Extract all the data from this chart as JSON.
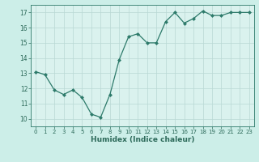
{
  "x": [
    0,
    1,
    2,
    3,
    4,
    5,
    6,
    7,
    8,
    9,
    10,
    11,
    12,
    13,
    14,
    15,
    16,
    17,
    18,
    19,
    20,
    21,
    22,
    23
  ],
  "y": [
    13.1,
    12.9,
    11.9,
    11.6,
    11.9,
    11.4,
    10.3,
    10.1,
    11.6,
    13.9,
    15.4,
    15.6,
    15.0,
    15.0,
    16.4,
    17.0,
    16.3,
    16.6,
    17.1,
    16.8,
    16.8,
    17.0,
    17.0,
    17.0
  ],
  "xlabel": "Humidex (Indice chaleur)",
  "ylim": [
    9.5,
    17.5
  ],
  "xlim": [
    -0.5,
    23.5
  ],
  "yticks": [
    10,
    11,
    12,
    13,
    14,
    15,
    16,
    17
  ],
  "xticks": [
    0,
    1,
    2,
    3,
    4,
    5,
    6,
    7,
    8,
    9,
    10,
    11,
    12,
    13,
    14,
    15,
    16,
    17,
    18,
    19,
    20,
    21,
    22,
    23
  ],
  "line_color": "#2d7a6a",
  "marker_color": "#2d7a6a",
  "bg_color": "#cceee8",
  "grid_color": "#b8d8d4",
  "plot_bg": "#daf2ee",
  "axis_color": "#2d7a6a",
  "tick_color": "#2d6a5a",
  "xlabel_color": "#2d6a5a"
}
